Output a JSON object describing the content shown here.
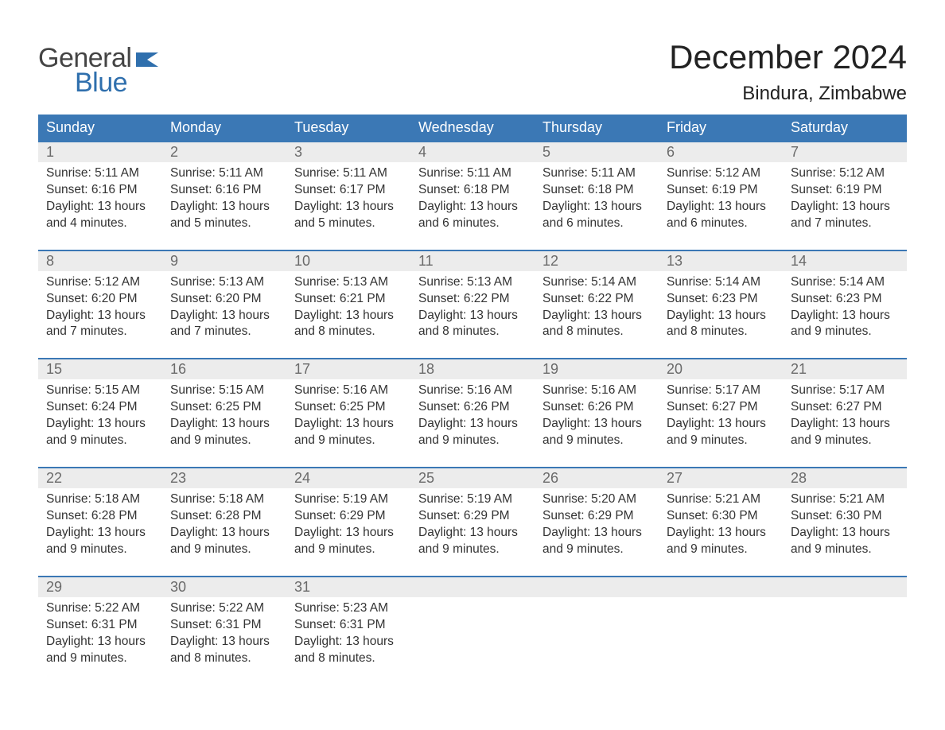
{
  "brand": {
    "word1": "General",
    "word2": "Blue",
    "flag_color": "#2f6fad",
    "text_gray": "#444444"
  },
  "header": {
    "month_title": "December 2024",
    "location": "Bindura, Zimbabwe"
  },
  "colors": {
    "header_bg": "#3b78b5",
    "header_text": "#ffffff",
    "row_accent": "#3b78b5",
    "daynum_bg": "#ececec",
    "daynum_text": "#6a6a6a",
    "body_text": "#333333",
    "page_bg": "#ffffff"
  },
  "typography": {
    "title_fontsize": 42,
    "location_fontsize": 24,
    "dayheader_fontsize": 18,
    "daynum_fontsize": 18,
    "body_fontsize": 15.5
  },
  "day_names": [
    "Sunday",
    "Monday",
    "Tuesday",
    "Wednesday",
    "Thursday",
    "Friday",
    "Saturday"
  ],
  "labels": {
    "sunrise": "Sunrise:",
    "sunset": "Sunset:",
    "daylight": "Daylight:"
  },
  "days": [
    {
      "n": "1",
      "sunrise": "5:11 AM",
      "sunset": "6:16 PM",
      "daylight": "13 hours and 4 minutes."
    },
    {
      "n": "2",
      "sunrise": "5:11 AM",
      "sunset": "6:16 PM",
      "daylight": "13 hours and 5 minutes."
    },
    {
      "n": "3",
      "sunrise": "5:11 AM",
      "sunset": "6:17 PM",
      "daylight": "13 hours and 5 minutes."
    },
    {
      "n": "4",
      "sunrise": "5:11 AM",
      "sunset": "6:18 PM",
      "daylight": "13 hours and 6 minutes."
    },
    {
      "n": "5",
      "sunrise": "5:11 AM",
      "sunset": "6:18 PM",
      "daylight": "13 hours and 6 minutes."
    },
    {
      "n": "6",
      "sunrise": "5:12 AM",
      "sunset": "6:19 PM",
      "daylight": "13 hours and 6 minutes."
    },
    {
      "n": "7",
      "sunrise": "5:12 AM",
      "sunset": "6:19 PM",
      "daylight": "13 hours and 7 minutes."
    },
    {
      "n": "8",
      "sunrise": "5:12 AM",
      "sunset": "6:20 PM",
      "daylight": "13 hours and 7 minutes."
    },
    {
      "n": "9",
      "sunrise": "5:13 AM",
      "sunset": "6:20 PM",
      "daylight": "13 hours and 7 minutes."
    },
    {
      "n": "10",
      "sunrise": "5:13 AM",
      "sunset": "6:21 PM",
      "daylight": "13 hours and 8 minutes."
    },
    {
      "n": "11",
      "sunrise": "5:13 AM",
      "sunset": "6:22 PM",
      "daylight": "13 hours and 8 minutes."
    },
    {
      "n": "12",
      "sunrise": "5:14 AM",
      "sunset": "6:22 PM",
      "daylight": "13 hours and 8 minutes."
    },
    {
      "n": "13",
      "sunrise": "5:14 AM",
      "sunset": "6:23 PM",
      "daylight": "13 hours and 8 minutes."
    },
    {
      "n": "14",
      "sunrise": "5:14 AM",
      "sunset": "6:23 PM",
      "daylight": "13 hours and 9 minutes."
    },
    {
      "n": "15",
      "sunrise": "5:15 AM",
      "sunset": "6:24 PM",
      "daylight": "13 hours and 9 minutes."
    },
    {
      "n": "16",
      "sunrise": "5:15 AM",
      "sunset": "6:25 PM",
      "daylight": "13 hours and 9 minutes."
    },
    {
      "n": "17",
      "sunrise": "5:16 AM",
      "sunset": "6:25 PM",
      "daylight": "13 hours and 9 minutes."
    },
    {
      "n": "18",
      "sunrise": "5:16 AM",
      "sunset": "6:26 PM",
      "daylight": "13 hours and 9 minutes."
    },
    {
      "n": "19",
      "sunrise": "5:16 AM",
      "sunset": "6:26 PM",
      "daylight": "13 hours and 9 minutes."
    },
    {
      "n": "20",
      "sunrise": "5:17 AM",
      "sunset": "6:27 PM",
      "daylight": "13 hours and 9 minutes."
    },
    {
      "n": "21",
      "sunrise": "5:17 AM",
      "sunset": "6:27 PM",
      "daylight": "13 hours and 9 minutes."
    },
    {
      "n": "22",
      "sunrise": "5:18 AM",
      "sunset": "6:28 PM",
      "daylight": "13 hours and 9 minutes."
    },
    {
      "n": "23",
      "sunrise": "5:18 AM",
      "sunset": "6:28 PM",
      "daylight": "13 hours and 9 minutes."
    },
    {
      "n": "24",
      "sunrise": "5:19 AM",
      "sunset": "6:29 PM",
      "daylight": "13 hours and 9 minutes."
    },
    {
      "n": "25",
      "sunrise": "5:19 AM",
      "sunset": "6:29 PM",
      "daylight": "13 hours and 9 minutes."
    },
    {
      "n": "26",
      "sunrise": "5:20 AM",
      "sunset": "6:29 PM",
      "daylight": "13 hours and 9 minutes."
    },
    {
      "n": "27",
      "sunrise": "5:21 AM",
      "sunset": "6:30 PM",
      "daylight": "13 hours and 9 minutes."
    },
    {
      "n": "28",
      "sunrise": "5:21 AM",
      "sunset": "6:30 PM",
      "daylight": "13 hours and 9 minutes."
    },
    {
      "n": "29",
      "sunrise": "5:22 AM",
      "sunset": "6:31 PM",
      "daylight": "13 hours and 9 minutes."
    },
    {
      "n": "30",
      "sunrise": "5:22 AM",
      "sunset": "6:31 PM",
      "daylight": "13 hours and 8 minutes."
    },
    {
      "n": "31",
      "sunrise": "5:23 AM",
      "sunset": "6:31 PM",
      "daylight": "13 hours and 8 minutes."
    }
  ],
  "grid": {
    "start_weekday_index": 0,
    "total_days": 31,
    "columns": 7
  }
}
